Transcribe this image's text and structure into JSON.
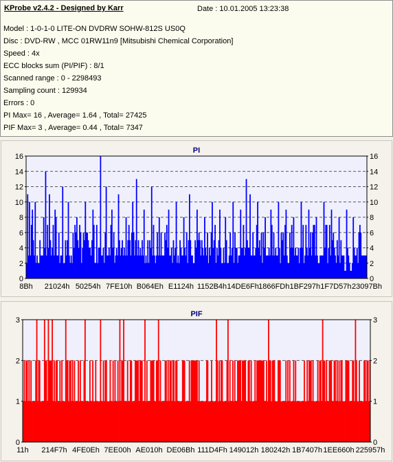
{
  "header": {
    "app_title": "KProbe v2.4.2 - Designed by Karr",
    "date_label": "Date : 10.01.2005 13:23:38"
  },
  "info": {
    "lines": [
      "Model : 1-0-1-0 LITE-ON DVDRW SOHW-812S  US0Q",
      "Disc : DVD-RW , MCC 01RW11n9 [Mitsubishi Chemical Corporation]",
      "Speed : 4x",
      "ECC blocks sum (PI/PIF) : 8/1",
      "Scanned range : 0 - 2298493",
      "Sampling count : 129934",
      "Errors : 0",
      "PI Max= 16 , Average= 1.64 , Total= 27425",
      "PIF Max= 3 , Average= 0.44 , Total= 7347"
    ]
  },
  "colors": {
    "pi_bar": "#0000ff",
    "pif_bar": "#ff0000",
    "plot_bg": "#f0f0fc",
    "grid": "#555555",
    "title_text": "#000080"
  },
  "chart_data": [
    {
      "type": "bar",
      "title": "PI",
      "ylim": [
        0,
        16
      ],
      "yticks": [
        0,
        2,
        4,
        6,
        8,
        10,
        12,
        14,
        16
      ],
      "xtick_labels": [
        "8Bh",
        "21024h",
        "50254h",
        "7FE10h",
        "B064Eh",
        "E1124h",
        "1152B4h",
        "14DE6Fh",
        "1866FDh",
        "1BF297h",
        "1F7D57h",
        "23097Bh"
      ],
      "grid": true,
      "max": 16,
      "average": 1.64,
      "sample_count": 360,
      "spikes": [
        [
          1,
          11
        ],
        [
          3,
          10
        ],
        [
          6,
          9
        ],
        [
          9,
          10
        ],
        [
          20,
          14
        ],
        [
          24,
          11
        ],
        [
          30,
          9
        ],
        [
          38,
          12
        ],
        [
          44,
          10
        ],
        [
          53,
          8
        ],
        [
          62,
          10
        ],
        [
          70,
          9
        ],
        [
          78,
          16
        ],
        [
          84,
          12
        ],
        [
          90,
          9
        ],
        [
          97,
          11
        ],
        [
          105,
          8
        ],
        [
          112,
          10
        ],
        [
          116,
          13
        ],
        [
          124,
          9
        ],
        [
          132,
          12
        ],
        [
          140,
          8
        ],
        [
          150,
          9
        ],
        [
          158,
          10
        ],
        [
          166,
          8
        ],
        [
          172,
          11
        ],
        [
          180,
          9
        ],
        [
          188,
          8
        ],
        [
          196,
          10
        ],
        [
          204,
          9
        ],
        [
          210,
          8
        ],
        [
          218,
          10
        ],
        [
          226,
          9
        ],
        [
          232,
          13
        ],
        [
          236,
          11
        ],
        [
          244,
          10
        ],
        [
          252,
          8
        ],
        [
          258,
          9
        ],
        [
          266,
          10
        ],
        [
          274,
          9
        ],
        [
          282,
          8
        ],
        [
          290,
          10
        ],
        [
          298,
          9
        ],
        [
          306,
          8
        ],
        [
          314,
          10
        ],
        [
          322,
          9
        ],
        [
          330,
          8
        ],
        [
          338,
          9
        ],
        [
          345,
          8
        ],
        [
          352,
          7
        ]
      ]
    },
    {
      "type": "bar",
      "title": "PIF",
      "ylim": [
        0,
        3
      ],
      "yticks": [
        0,
        1,
        2,
        3
      ],
      "xtick_labels": [
        "11h",
        "214F7h",
        "4FE0Eh",
        "7EE00h",
        "AE010h",
        "DE06Bh",
        "111D4Fh",
        "149012h",
        "180242h",
        "1B7407h",
        "1EE660h",
        "225957h"
      ],
      "grid": true,
      "max": 3,
      "average": 0.44,
      "sample_count": 360,
      "spikes": [
        [
          14,
          3
        ],
        [
          22,
          3
        ],
        [
          26,
          3
        ],
        [
          30,
          3
        ],
        [
          44,
          3
        ],
        [
          64,
          3
        ],
        [
          80,
          3
        ],
        [
          100,
          3
        ],
        [
          104,
          3
        ],
        [
          126,
          3
        ],
        [
          140,
          3
        ],
        [
          200,
          3
        ],
        [
          212,
          3
        ],
        [
          254,
          3
        ],
        [
          310,
          3
        ],
        [
          344,
          3
        ]
      ]
    }
  ]
}
